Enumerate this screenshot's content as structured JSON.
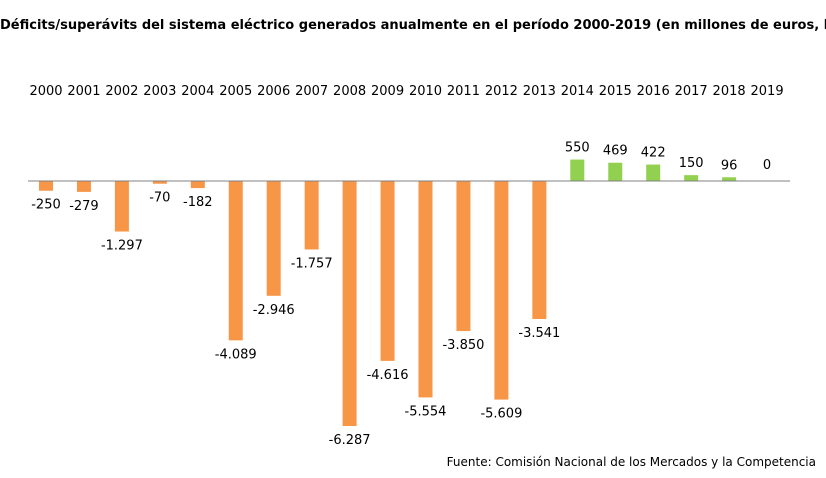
{
  "title": "Déficits/superávits del sistema eléctrico generados anualmente en el período 2000-2019 (en millones de euros, M€)",
  "source": "Fuente: Comisión Nacional de los Mercados y la Competencia",
  "colors": {
    "deficit": "#F79646",
    "surplus": "#92D050",
    "axis": "#808080",
    "text": "#000000"
  },
  "chart_data": {
    "type": "bar",
    "title": "Déficits/superávits del sistema eléctrico generados anualmente en el período 2000-2019 (en millones de euros, M€)",
    "xlabel": "",
    "ylabel": "",
    "categories": [
      "2000",
      "2001",
      "2002",
      "2003",
      "2004",
      "2005",
      "2006",
      "2007",
      "2008",
      "2009",
      "2010",
      "2011",
      "2012",
      "2013",
      "2014",
      "2015",
      "2016",
      "2017",
      "2018",
      "2019"
    ],
    "values": [
      -250,
      -279,
      -1297,
      -70,
      -182,
      -4089,
      -2946,
      -1757,
      -6287,
      -4616,
      -5554,
      -3850,
      -5609,
      -3541,
      550,
      469,
      422,
      150,
      96,
      0
    ],
    "data_labels": [
      "-250",
      "-279",
      "-1.297",
      "-70",
      "-182",
      "-4.089",
      "-2.946",
      "-1.757",
      "-6.287",
      "-4.616",
      "-5.554",
      "-3.850",
      "-5.609",
      "-3.541",
      "550",
      "469",
      "422",
      "150",
      "96",
      "0"
    ],
    "category_labels_position": "top",
    "grid": false,
    "legend": "none"
  }
}
